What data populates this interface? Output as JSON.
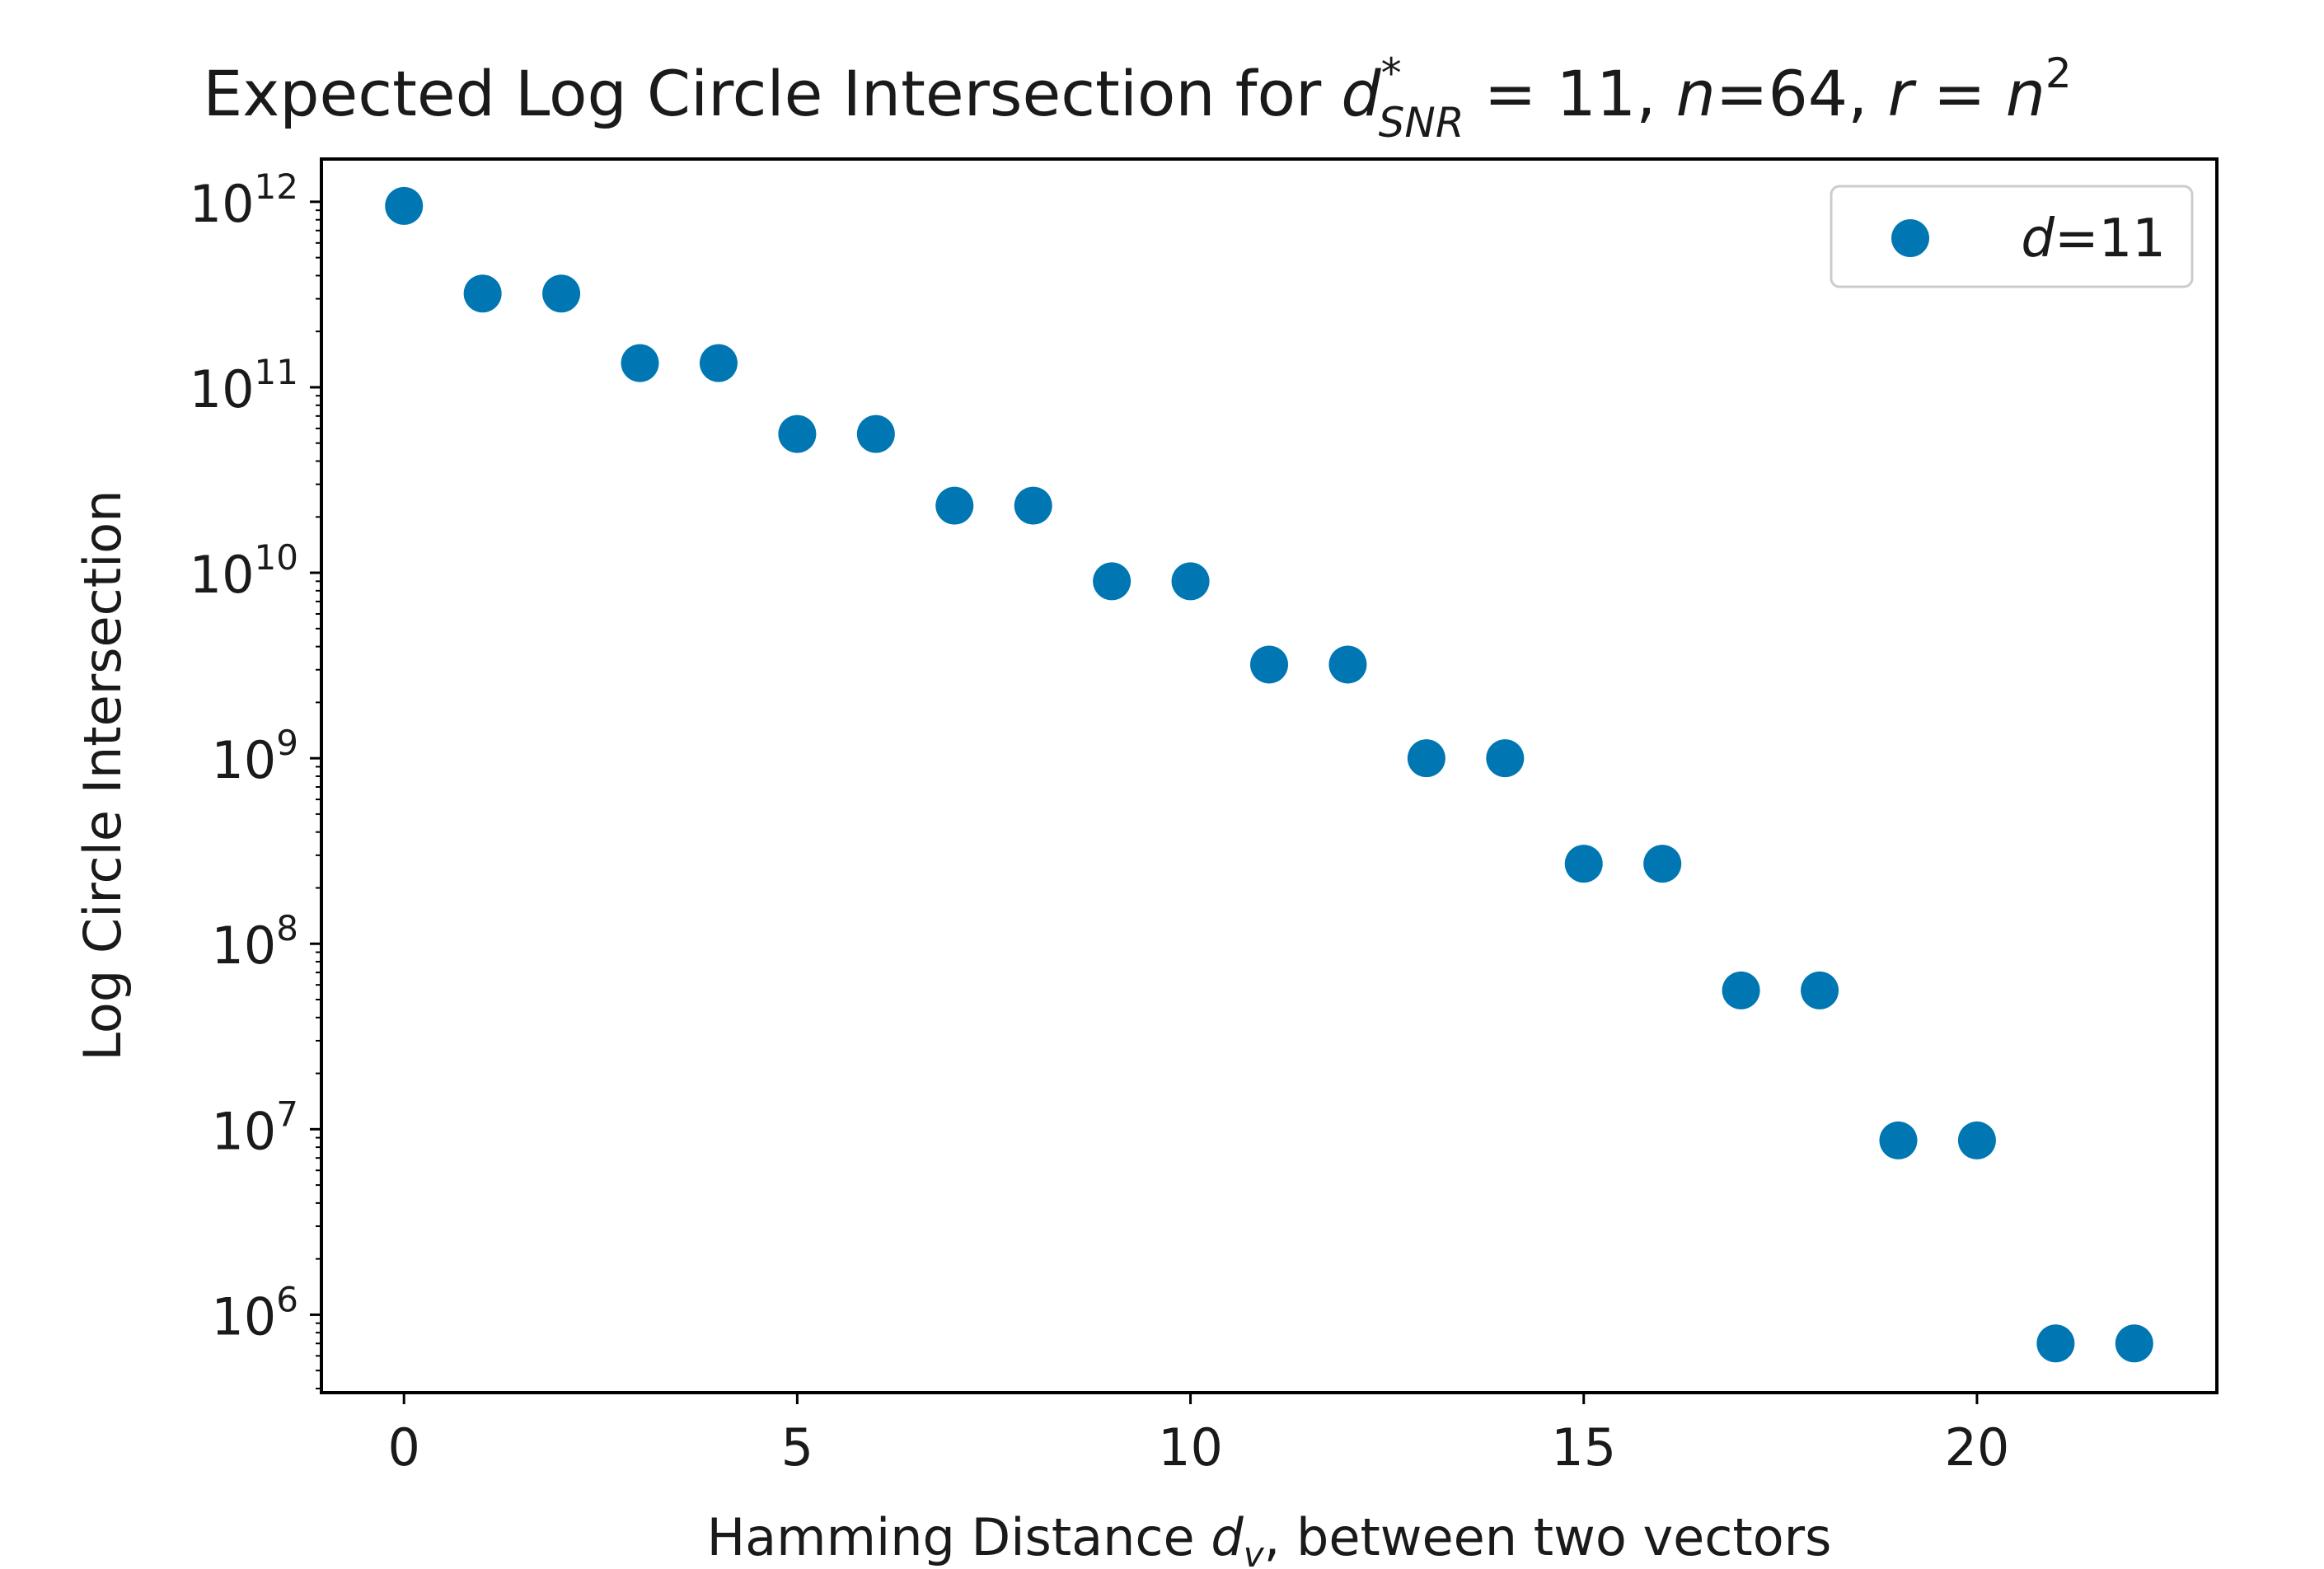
{
  "chart_data": {
    "type": "scatter",
    "title": {
      "prefix": "Expected Log Circle Intersection for ",
      "d": "d",
      "d_sup": "*",
      "d_sub": "SNR",
      "eq_value": " = 11, ",
      "n": "n",
      "n_value": "=64, ",
      "r": "r",
      "r_eq": " = ",
      "r_n": "n",
      "r_sup": "2"
    },
    "xlabel": {
      "prefix": "Hamming Distance ",
      "d": "d",
      "sub": "v",
      "suffix": ", between two vectors"
    },
    "ylabel": "Log Circle Intersection",
    "yscale": "log",
    "xlim": [
      -1.05,
      23.05
    ],
    "ylim": [
      380000,
      1700000000000
    ],
    "grid": false,
    "legend_position": "top-right",
    "xticks": [
      {
        "value": 0,
        "label": "0"
      },
      {
        "value": 5,
        "label": "5"
      },
      {
        "value": 10,
        "label": "10"
      },
      {
        "value": 15,
        "label": "15"
      },
      {
        "value": 20,
        "label": "20"
      }
    ],
    "yticks": [
      {
        "exp": 6,
        "base": "10",
        "sup": "6"
      },
      {
        "exp": 7,
        "base": "10",
        "sup": "7"
      },
      {
        "exp": 8,
        "base": "10",
        "sup": "8"
      },
      {
        "exp": 9,
        "base": "10",
        "sup": "9"
      },
      {
        "exp": 10,
        "base": "10",
        "sup": "10"
      },
      {
        "exp": 11,
        "base": "10",
        "sup": "11"
      },
      {
        "exp": 12,
        "base": "10",
        "sup": "12"
      }
    ],
    "series": [
      {
        "legend_var": "d",
        "legend_value": "=11",
        "color": "#0077b3",
        "x": [
          0,
          1,
          2,
          3,
          4,
          5,
          6,
          7,
          8,
          9,
          10,
          11,
          12,
          13,
          14,
          15,
          16,
          17,
          18,
          19,
          20,
          21,
          22
        ],
        "y": [
          950000000000,
          320000000000,
          320000000000,
          135000000000,
          135000000000,
          56000000000,
          56000000000,
          23000000000,
          23000000000,
          9000000000,
          9000000000,
          3200000000,
          3200000000,
          1000000000,
          1000000000,
          270000000,
          270000000,
          56000000,
          56000000,
          8700000,
          8700000,
          700000,
          700000
        ]
      }
    ]
  }
}
